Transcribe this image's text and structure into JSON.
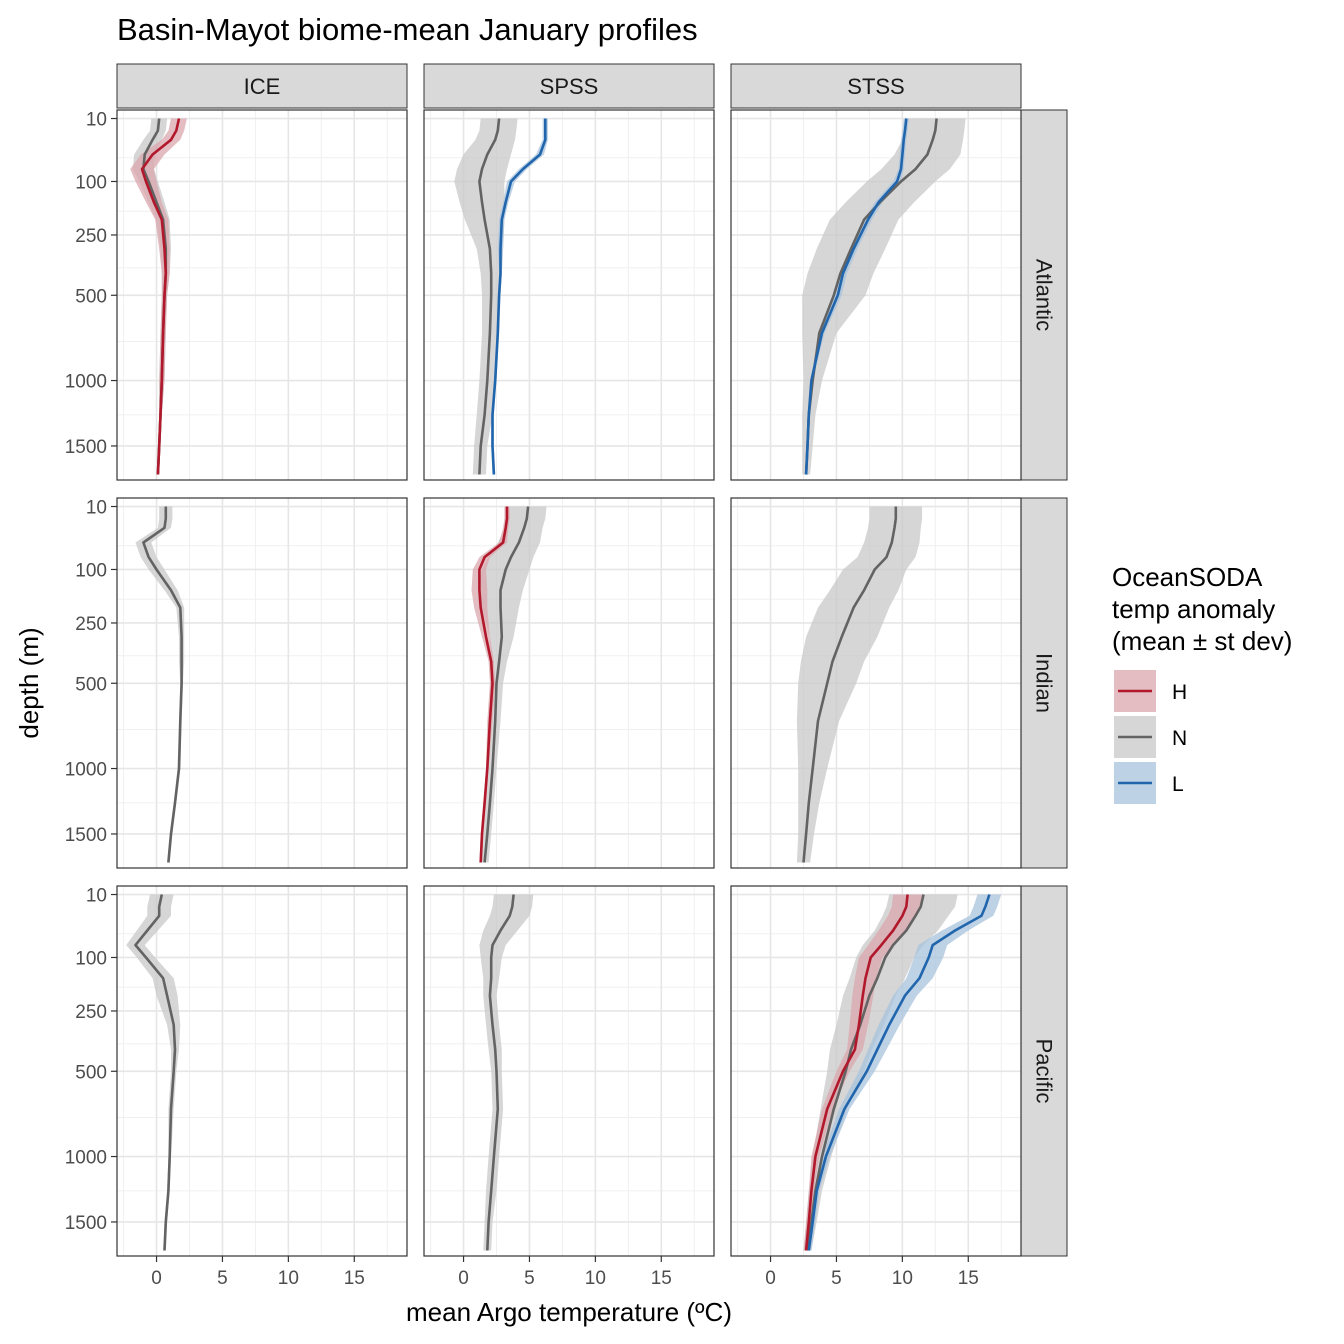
{
  "chart_data": {
    "type": "line",
    "title": "Basin-Mayot biome-mean January profiles",
    "xlabel": "mean Argo temperature (ºC)",
    "ylabel": "depth (m)",
    "x_range": [
      -3,
      19
    ],
    "x_ticks": [
      0,
      5,
      10,
      15
    ],
    "y_scale": "sqrt",
    "y_reversed": true,
    "y_range": [
      5,
      1800
    ],
    "y_ticks": [
      10,
      100,
      250,
      500,
      1000,
      1500
    ],
    "grid": true,
    "legend": {
      "title": [
        "OceanSODA",
        "temp anomaly",
        "(mean ± st dev)"
      ],
      "position": "right",
      "entries": [
        "H",
        "N",
        "L"
      ]
    },
    "colors": {
      "H": "#b2182b",
      "N": "#636363",
      "L": "#2166ac",
      "H_band": "#d9a7ae",
      "N_band": "#c8c8c8",
      "L_band": "#a8c3de"
    },
    "col_strips": [
      "ICE",
      "SPSS",
      "STSS"
    ],
    "row_strips": [
      "Atlantic",
      "Indian",
      "Pacific"
    ],
    "depths": [
      10,
      20,
      30,
      50,
      75,
      100,
      150,
      200,
      300,
      400,
      500,
      700,
      1000,
      1250,
      1500,
      1750
    ],
    "panels": [
      {
        "row": "Atlantic",
        "col": "ICE",
        "series": [
          {
            "name": "N",
            "values": [
              0.2,
              0.1,
              -0.3,
              -0.9,
              -1.0,
              -0.6,
              0.0,
              0.5,
              0.7,
              0.7,
              0.6,
              0.5,
              0.4,
              0.3,
              0.2,
              0.1
            ],
            "sd": [
              0.6,
              0.6,
              0.7,
              0.8,
              0.8,
              0.7,
              0.6,
              0.5,
              0.4,
              0.3,
              0.2,
              0.2,
              0.2,
              0.1,
              0.1,
              0.1
            ]
          },
          {
            "name": "H",
            "values": [
              1.7,
              1.5,
              1.1,
              -0.3,
              -1.1,
              -0.8,
              -0.2,
              0.4,
              0.6,
              0.7,
              0.6,
              0.5,
              0.4,
              0.3,
              0.2,
              0.1
            ],
            "sd": [
              0.6,
              0.6,
              0.7,
              0.9,
              0.9,
              0.8,
              0.6,
              0.5,
              0.4,
              0.3,
              0.2,
              0.2,
              0.2,
              0.1,
              0.1,
              0.1
            ]
          }
        ]
      },
      {
        "row": "Atlantic",
        "col": "SPSS",
        "series": [
          {
            "name": "N",
            "values": [
              2.7,
              2.6,
              2.4,
              1.8,
              1.4,
              1.2,
              1.4,
              1.6,
              2.0,
              2.1,
              2.1,
              2.0,
              1.8,
              1.6,
              1.3,
              1.2
            ],
            "sd": [
              1.4,
              1.4,
              1.5,
              1.8,
              1.9,
              1.9,
              1.7,
              1.5,
              1.0,
              0.8,
              0.7,
              0.6,
              0.6,
              0.6,
              0.5,
              0.5
            ]
          },
          {
            "name": "L",
            "values": [
              6.2,
              6.2,
              6.2,
              5.8,
              4.5,
              3.6,
              3.2,
              2.9,
              2.8,
              2.8,
              2.7,
              2.6,
              2.4,
              2.2,
              2.2,
              2.3
            ],
            "sd": [
              0.2,
              0.2,
              0.2,
              0.3,
              0.3,
              0.3,
              0.2,
              0.2,
              0.2,
              0.1,
              0.1,
              0.1,
              0.1,
              0.1,
              0.1,
              0.1
            ]
          }
        ]
      },
      {
        "row": "Atlantic",
        "col": "STSS",
        "series": [
          {
            "name": "N",
            "values": [
              12.6,
              12.5,
              12.3,
              11.9,
              11.0,
              9.9,
              8.3,
              7.1,
              6.1,
              5.3,
              4.8,
              3.7,
              3.2,
              2.9,
              2.8,
              2.7
            ],
            "sd": [
              2.2,
              2.2,
              2.3,
              2.5,
              2.6,
              2.6,
              2.6,
              2.6,
              2.6,
              2.5,
              2.4,
              1.3,
              0.7,
              0.5,
              0.4,
              0.3
            ]
          },
          {
            "name": "L",
            "values": [
              10.3,
              10.2,
              10.1,
              10.0,
              9.9,
              9.6,
              8.2,
              7.4,
              6.3,
              5.5,
              5.1,
              3.9,
              3.1,
              2.9,
              2.8,
              2.7
            ],
            "sd": [
              0.2,
              0.2,
              0.2,
              0.2,
              0.2,
              0.3,
              0.3,
              0.3,
              0.3,
              0.3,
              0.3,
              0.2,
              0.1,
              0.1,
              0.1,
              0.1
            ]
          }
        ]
      },
      {
        "row": "Indian",
        "col": "ICE",
        "series": [
          {
            "name": "N",
            "values": [
              0.7,
              0.7,
              0.6,
              -1.0,
              -0.6,
              0.0,
              1.1,
              1.8,
              1.9,
              1.9,
              1.9,
              1.8,
              1.7,
              1.4,
              1.1,
              0.9
            ],
            "sd": [
              0.5,
              0.5,
              0.5,
              0.6,
              0.6,
              0.6,
              0.5,
              0.3,
              0.2,
              0.2,
              0.1,
              0.1,
              0.1,
              0.1,
              0.1,
              0.1
            ]
          }
        ]
      },
      {
        "row": "Indian",
        "col": "SPSS",
        "series": [
          {
            "name": "N",
            "values": [
              4.9,
              4.8,
              4.6,
              4.2,
              3.6,
              3.2,
              2.8,
              2.8,
              2.9,
              2.7,
              2.5,
              2.4,
              2.2,
              2.0,
              1.8,
              1.6
            ],
            "sd": [
              1.4,
              1.4,
              1.4,
              1.6,
              1.7,
              1.8,
              1.7,
              1.4,
              0.9,
              0.6,
              0.5,
              0.4,
              0.3,
              0.3,
              0.3,
              0.3
            ]
          },
          {
            "name": "H",
            "values": [
              3.3,
              3.3,
              3.2,
              3.0,
              1.6,
              1.2,
              1.2,
              1.3,
              1.7,
              2.1,
              2.2,
              2.0,
              1.8,
              1.6,
              1.4,
              1.3
            ],
            "sd": [
              0.2,
              0.2,
              0.2,
              0.3,
              0.4,
              0.5,
              0.6,
              0.5,
              0.3,
              0.2,
              0.2,
              0.2,
              0.1,
              0.1,
              0.1,
              0.1
            ]
          }
        ]
      },
      {
        "row": "Indian",
        "col": "STSS",
        "series": [
          {
            "name": "N",
            "values": [
              9.5,
              9.5,
              9.4,
              9.2,
              8.8,
              7.9,
              7.1,
              6.3,
              5.4,
              4.7,
              4.3,
              3.6,
              3.2,
              2.9,
              2.7,
              2.5
            ],
            "sd": [
              2.0,
              2.0,
              2.0,
              2.1,
              2.2,
              2.4,
              2.6,
              2.7,
              2.7,
              2.4,
              2.2,
              1.6,
              1.1,
              0.8,
              0.6,
              0.5
            ]
          }
        ]
      },
      {
        "row": "Pacific",
        "col": "ICE",
        "series": [
          {
            "name": "N",
            "values": [
              0.4,
              0.2,
              0.2,
              -0.7,
              -1.6,
              -0.8,
              0.5,
              0.8,
              1.3,
              1.4,
              1.3,
              1.1,
              1.0,
              0.9,
              0.7,
              0.6
            ],
            "sd": [
              0.9,
              0.9,
              0.9,
              0.8,
              0.7,
              0.7,
              0.8,
              0.8,
              0.5,
              0.3,
              0.2,
              0.2,
              0.1,
              0.1,
              0.1,
              0.1
            ]
          }
        ]
      },
      {
        "row": "Pacific",
        "col": "SPSS",
        "series": [
          {
            "name": "N",
            "values": [
              3.8,
              3.7,
              3.5,
              2.8,
              2.2,
              2.1,
              2.1,
              2.0,
              2.2,
              2.4,
              2.5,
              2.6,
              2.3,
              2.1,
              1.9,
              1.8
            ],
            "sd": [
              1.5,
              1.5,
              1.5,
              1.3,
              1.0,
              0.8,
              0.6,
              0.5,
              0.5,
              0.5,
              0.4,
              0.4,
              0.4,
              0.4,
              0.3,
              0.3
            ]
          }
        ]
      },
      {
        "row": "Pacific",
        "col": "STSS",
        "series": [
          {
            "name": "N",
            "values": [
              11.6,
              11.4,
              11.0,
              10.3,
              9.3,
              8.7,
              8.1,
              7.5,
              6.8,
              6.1,
              5.7,
              4.8,
              3.9,
              3.4,
              3.1,
              2.8
            ],
            "sd": [
              2.6,
              2.6,
              2.5,
              2.4,
              2.3,
              2.2,
              2.1,
              2.0,
              1.8,
              1.6,
              1.4,
              1.0,
              0.7,
              0.5,
              0.4,
              0.3
            ]
          },
          {
            "name": "H",
            "values": [
              10.4,
              10.3,
              10.0,
              9.3,
              8.4,
              7.6,
              7.2,
              7.0,
              6.7,
              6.4,
              5.5,
              4.3,
              3.4,
              3.1,
              2.9,
              2.7
            ],
            "sd": [
              1.1,
              1.1,
              1.1,
              1.1,
              1.0,
              0.9,
              0.8,
              0.8,
              0.7,
              0.6,
              0.5,
              0.4,
              0.3,
              0.2,
              0.2,
              0.2
            ]
          },
          {
            "name": "L",
            "values": [
              16.6,
              16.3,
              16.0,
              14.0,
              12.3,
              12.0,
              11.3,
              10.2,
              9.0,
              8.1,
              7.3,
              5.6,
              4.2,
              3.5,
              3.2,
              2.9
            ],
            "sd": [
              0.9,
              0.9,
              0.9,
              1.0,
              1.1,
              1.1,
              1.0,
              0.9,
              0.8,
              0.7,
              0.6,
              0.4,
              0.3,
              0.2,
              0.2,
              0.2
            ]
          }
        ]
      }
    ]
  }
}
